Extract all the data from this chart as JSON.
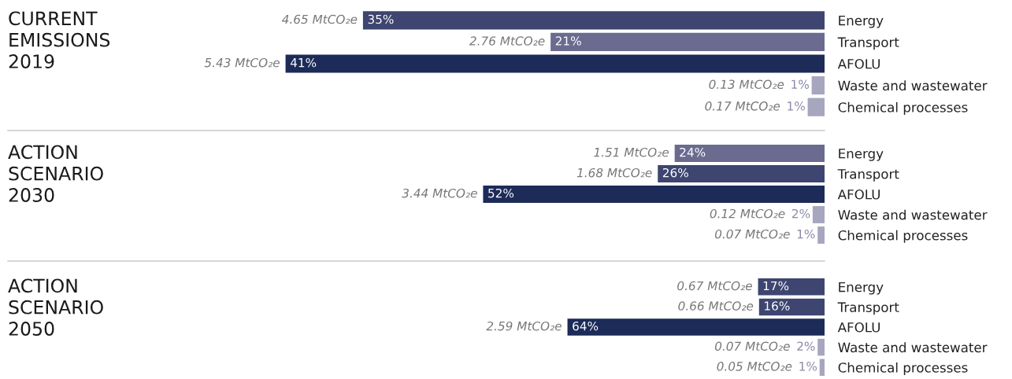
{
  "chart_data": [
    {
      "type": "bar",
      "orientation": "horizontal",
      "ylabel": "CURRENT EMISSIONS 2019",
      "categories": [
        "Energy",
        "Transport",
        "AFOLU",
        "Waste and wastewater",
        "Chemical processes"
      ],
      "values": [
        4.65,
        2.76,
        5.43,
        0.13,
        0.17
      ],
      "colors": [
        "#3d4570",
        "#6a6b8f",
        "#1c2b58",
        "#a6a6bf",
        "#a6a6bf"
      ],
      "value_labels": [
        "4.65 MtCO₂e",
        "2.76 MtCO₂e",
        "5.43 MtCO₂e",
        "0.13 MtCO₂e",
        "0.17 MtCO₂e"
      ],
      "tick_labels": "y",
      "annotations": [
        {
          "text": "35%",
          "x": 4.65,
          "y": "Energy"
        },
        {
          "text": "21%",
          "x": 2.76,
          "y": "Transport"
        },
        {
          "text": "41%",
          "x": 5.43,
          "y": "AFOLU"
        },
        {
          "text": "1%",
          "x": 0.13,
          "y": "Waste and wastewater"
        },
        {
          "text": "1%",
          "x": 0.17,
          "y": "Chemical processes"
        }
      ]
    },
    {
      "type": "bar",
      "orientation": "horizontal",
      "ylabel": "ACTION SCENARIO 2030",
      "categories": [
        "Energy",
        "Transport",
        "AFOLU",
        "Waste and wastewater",
        "Chemical processes"
      ],
      "values": [
        1.51,
        1.68,
        3.44,
        0.12,
        0.07
      ],
      "colors": [
        "#6a6b8f",
        "#3d4570",
        "#1c2b58",
        "#a6a6bf",
        "#a6a6bf"
      ],
      "value_labels": [
        "1.51 MtCO₂e",
        "1.68 MtCO₂e",
        "3.44 MtCO₂e",
        "0.12 MtCO₂e",
        "0.07 MtCO₂e"
      ],
      "tick_labels": "y",
      "annotations": [
        {
          "text": "24%",
          "x": 1.51,
          "y": "Energy"
        },
        {
          "text": "26%",
          "x": 1.68,
          "y": "Transport"
        },
        {
          "text": "52%",
          "x": 3.44,
          "y": "AFOLU"
        },
        {
          "text": "2%",
          "x": 0.12,
          "y": "Waste and wastewater"
        },
        {
          "text": "1%",
          "x": 0.07,
          "y": "Chemical processes"
        }
      ]
    },
    {
      "type": "bar",
      "orientation": "horizontal",
      "ylabel": "ACTION SCENARIO 2050",
      "categories": [
        "Energy",
        "Transport",
        "AFOLU",
        "Waste and wastewater",
        "Chemical processes"
      ],
      "values": [
        0.67,
        0.66,
        2.59,
        0.07,
        0.05
      ],
      "colors": [
        "#3d4570",
        "#3d4570",
        "#1c2b58",
        "#a6a6bf",
        "#a6a6bf"
      ],
      "value_labels": [
        "0.67 MtCO₂e",
        "0.66 MtCO₂e",
        "2.59 MtCO₂e",
        "0.07 MtCO₂e",
        "0.05 MtCO₂e"
      ],
      "tick_labels": "y",
      "annotations": [
        {
          "text": "17%",
          "x": 0.67,
          "y": "Energy"
        },
        {
          "text": "16%",
          "x": 0.66,
          "y": "Transport"
        },
        {
          "text": "64%",
          "x": 2.59,
          "y": "AFOLU"
        },
        {
          "text": "2%",
          "x": 0.07,
          "y": "Waste and wastewater"
        },
        {
          "text": "1%",
          "x": 0.05,
          "y": "Chemical processes"
        }
      ]
    }
  ]
}
